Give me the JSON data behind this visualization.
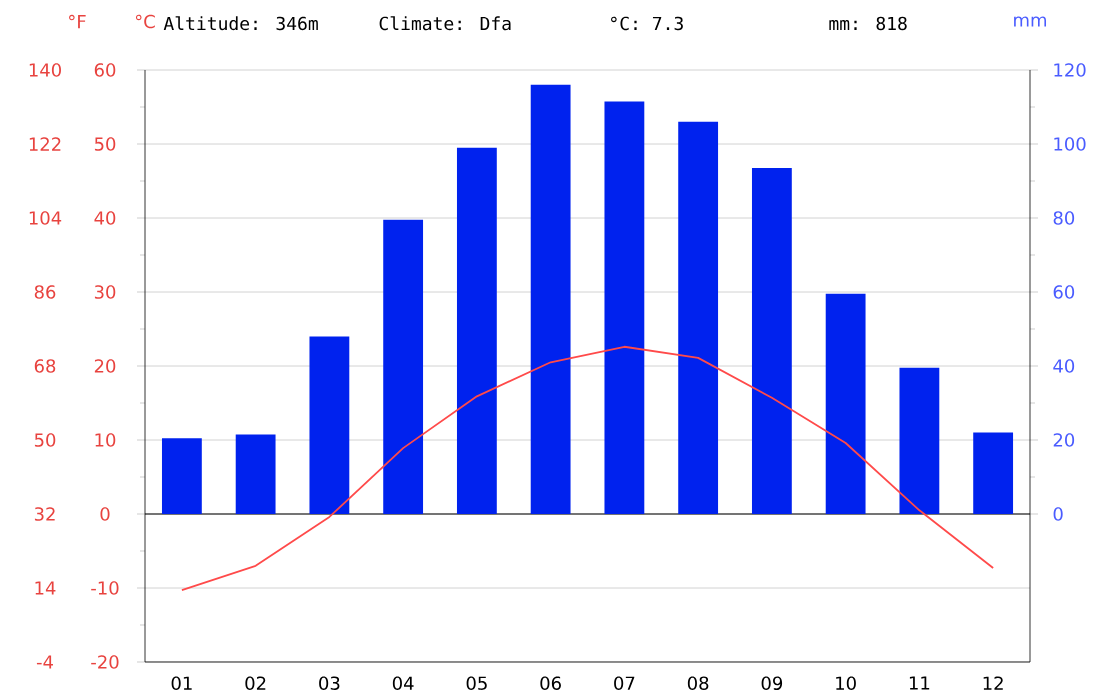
{
  "chart_data": {
    "type": "bar",
    "categories": [
      "01",
      "02",
      "03",
      "04",
      "05",
      "06",
      "07",
      "08",
      "09",
      "10",
      "11",
      "12"
    ],
    "annotations": [
      "Altitude: 346m",
      "Climate: Dfa",
      "°C: 7.3",
      "mm: 818"
    ],
    "ylabel": "°C",
    "y2label": "mm",
    "y3label": "°F",
    "ylim": [
      -20,
      60
    ],
    "yticks": [
      -20,
      -10,
      0,
      10,
      20,
      30,
      40,
      50,
      60
    ],
    "y2lim": [
      -40,
      120
    ],
    "y2ticks": [
      0,
      20,
      40,
      60,
      80,
      100,
      120
    ],
    "y3lim": [
      -4,
      140
    ],
    "y3ticks": [
      -4,
      14,
      32,
      50,
      68,
      86,
      104,
      122,
      140
    ],
    "grid": "y",
    "series": [
      {
        "axis": "y2",
        "color": "#0022ee",
        "values": [
          20.5,
          21.5,
          48,
          79.5,
          99,
          116,
          111.5,
          106,
          93.5,
          59.5,
          39.5,
          22
        ]
      },
      {
        "type": "line",
        "axis": "y",
        "color": "#ff4a4a",
        "values": [
          -10.3,
          -7.0,
          -0.4,
          8.9,
          15.9,
          20.5,
          22.6,
          21.1,
          15.7,
          9.6,
          0.5,
          -7.3
        ]
      }
    ]
  }
}
